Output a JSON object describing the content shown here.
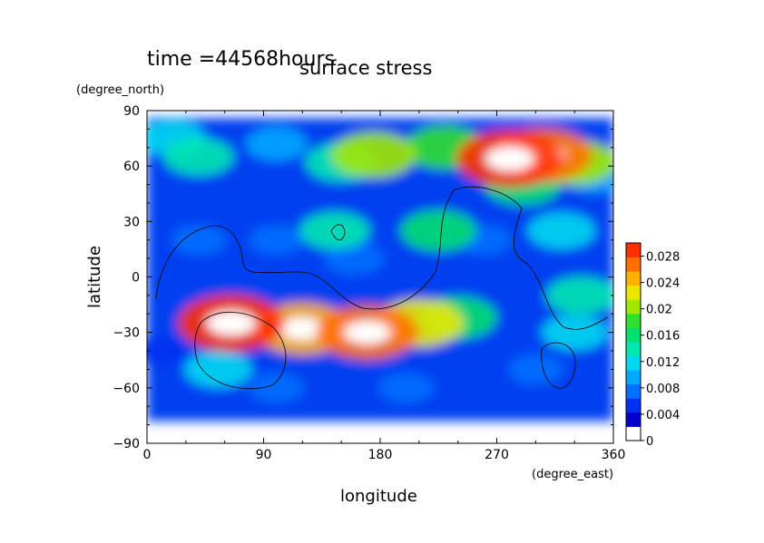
{
  "chart_data": {
    "type": "heatmap",
    "title": "surface stress",
    "subtitle": "time =44568hours",
    "xlabel": "longitude",
    "ylabel": "latitude",
    "x_units": "(degree_east)",
    "y_units": "(degree_north)",
    "xlim": [
      0,
      360
    ],
    "ylim": [
      -90,
      90
    ],
    "xticks": [
      0,
      90,
      180,
      270,
      360
    ],
    "yticks": [
      90,
      60,
      30,
      0,
      -30,
      -60,
      -90
    ],
    "colorbar": {
      "ticks": [
        0,
        0.004,
        0.008,
        0.012,
        0.016,
        0.02,
        0.024,
        0.028
      ],
      "tick_labels": [
        "0",
        "0.004",
        "0.008",
        "0.012",
        "0.016",
        "0.02",
        "0.024",
        "0.028"
      ],
      "range": [
        0,
        0.03
      ],
      "colors": [
        "#ffffff",
        "#0000c8",
        "#0030f0",
        "#0070ff",
        "#00a8ff",
        "#00d8f0",
        "#00e8b0",
        "#00e070",
        "#30e030",
        "#a0e800",
        "#e8e800",
        "#ffb000",
        "#ff7000",
        "#ff3000"
      ]
    },
    "blobs": [
      {
        "lon": 20,
        "lat": 75,
        "value": 0.011
      },
      {
        "lon": 40,
        "lat": 65,
        "value": 0.013
      },
      {
        "lon": 100,
        "lat": 72,
        "value": 0.009
      },
      {
        "lon": 150,
        "lat": 62,
        "value": 0.014
      },
      {
        "lon": 175,
        "lat": 66,
        "value": 0.02
      },
      {
        "lon": 230,
        "lat": 70,
        "value": 0.018
      },
      {
        "lon": 280,
        "lat": 64,
        "value": 0.03
      },
      {
        "lon": 305,
        "lat": 66,
        "value": 0.027
      },
      {
        "lon": 330,
        "lat": 62,
        "value": 0.02
      },
      {
        "lon": 290,
        "lat": 50,
        "value": 0.016
      },
      {
        "lon": 345,
        "lat": 55,
        "value": 0.01
      },
      {
        "lon": 145,
        "lat": 25,
        "value": 0.013
      },
      {
        "lon": 225,
        "lat": 25,
        "value": 0.016
      },
      {
        "lon": 160,
        "lat": 10,
        "value": 0.008
      },
      {
        "lon": 320,
        "lat": 25,
        "value": 0.012
      },
      {
        "lon": 335,
        "lat": -10,
        "value": 0.013
      },
      {
        "lon": 65,
        "lat": -25,
        "value": 0.03
      },
      {
        "lon": 120,
        "lat": -28,
        "value": 0.026
      },
      {
        "lon": 170,
        "lat": -30,
        "value": 0.028
      },
      {
        "lon": 210,
        "lat": -25,
        "value": 0.022
      },
      {
        "lon": 240,
        "lat": -22,
        "value": 0.017
      },
      {
        "lon": 55,
        "lat": -50,
        "value": 0.012
      },
      {
        "lon": 330,
        "lat": -30,
        "value": 0.011
      },
      {
        "lon": 40,
        "lat": 20,
        "value": 0.006
      },
      {
        "lon": 100,
        "lat": 20,
        "value": 0.006
      },
      {
        "lon": 260,
        "lat": 20,
        "value": 0.006
      },
      {
        "lon": 100,
        "lat": -60,
        "value": 0.006
      },
      {
        "lon": 200,
        "lat": -60,
        "value": 0.006
      },
      {
        "lon": 300,
        "lat": -50,
        "value": 0.006
      },
      {
        "lon": 10,
        "lat": -40,
        "value": 0.005
      }
    ]
  }
}
